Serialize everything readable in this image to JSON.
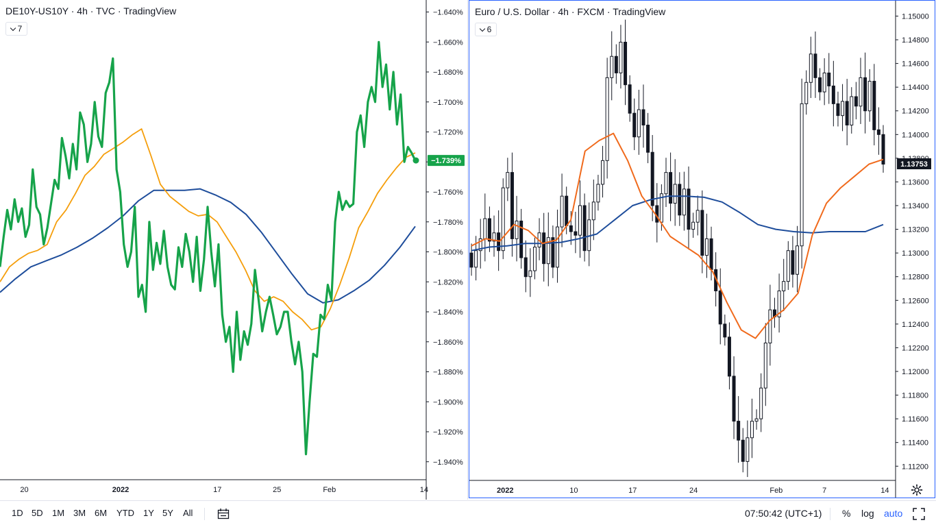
{
  "left_chart": {
    "title": "DE10Y-US10Y · 4h · TVC · TradingView",
    "indicator_count": "7",
    "last_value_label": "−1.739%",
    "colors": {
      "line": "#16a34a",
      "ma_fast": "#f59e0b",
      "ma_slow": "#1e4d9b",
      "price_tag": "#16a34a"
    }
  },
  "right_chart": {
    "title": "Euro / U.S. Dollar · 4h · FXCM · TradingView",
    "indicator_count": "6",
    "last_value_label": "1.13753",
    "colors": {
      "candle": "#131722",
      "ma_fast": "#f06a1c",
      "ma_slow": "#1e4d9b",
      "price_tag": "#131722"
    }
  },
  "chart_data": [
    {
      "type": "line",
      "title": "DE10Y-US10Y · 4h · TVC · TradingView",
      "y_tick_labels": [
        "−1.640%",
        "−1.660%",
        "−1.680%",
        "−1.700%",
        "−1.720%",
        "−1.740%",
        "−1.760%",
        "−1.780%",
        "−1.800%",
        "−1.820%",
        "−1.840%",
        "−1.860%",
        "−1.880%",
        "−1.900%",
        "−1.920%",
        "−1.940%"
      ],
      "y_ticks": [
        -1.64,
        -1.66,
        -1.68,
        -1.7,
        -1.72,
        -1.74,
        -1.76,
        -1.78,
        -1.8,
        -1.82,
        -1.84,
        -1.86,
        -1.88,
        -1.9,
        -1.92,
        -1.94
      ],
      "ylim": [
        -1.952,
        -1.632
      ],
      "x_tick_labels": [
        "20",
        "2022",
        "17",
        "25",
        "Feb",
        "14"
      ],
      "x_tick_pos": [
        0.057,
        0.283,
        0.51,
        0.65,
        0.773,
        0.995
      ],
      "series": [
        {
          "values": [
            -1.81,
            -1.79,
            -1.772,
            -1.785,
            -1.765,
            -1.78,
            -1.771,
            -1.79,
            -1.782,
            -1.745,
            -1.77,
            -1.775,
            -1.795,
            -1.784,
            -1.768,
            -1.752,
            -1.758,
            -1.724,
            -1.736,
            -1.751,
            -1.728,
            -1.745,
            -1.707,
            -1.715,
            -1.74,
            -1.728,
            -1.7,
            -1.723,
            -1.73,
            -1.694,
            -1.687,
            -1.671,
            -1.745,
            -1.76,
            -1.795,
            -1.81,
            -1.8,
            -1.77,
            -1.83,
            -1.822,
            -1.84,
            -1.78,
            -1.812,
            -1.794,
            -1.808,
            -1.786,
            -1.81,
            -1.822,
            -1.825,
            -1.797,
            -1.81,
            -1.788,
            -1.8,
            -1.82,
            -1.79,
            -1.826,
            -1.805,
            -1.77,
            -1.8,
            -1.823,
            -1.795,
            -1.842,
            -1.86,
            -1.85,
            -1.88,
            -1.84,
            -1.872,
            -1.853,
            -1.862,
            -1.848,
            -1.812,
            -1.832,
            -1.853,
            -1.84,
            -1.83,
            -1.842,
            -1.855,
            -1.85,
            -1.84,
            -1.84,
            -1.86,
            -1.875,
            -1.86,
            -1.88,
            -1.935,
            -1.9,
            -1.868,
            -1.87,
            -1.842,
            -1.845,
            -1.822,
            -1.832,
            -1.78,
            -1.76,
            -1.772,
            -1.766,
            -1.77,
            -1.768,
            -1.72,
            -1.709,
            -1.73,
            -1.7,
            -1.69,
            -1.7,
            -1.66,
            -1.69,
            -1.675,
            -1.705,
            -1.68,
            -1.715,
            -1.695,
            -1.74,
            -1.73,
            -1.734,
            -1.739
          ]
        },
        {
          "values": [
            -1.82,
            -1.81,
            -1.805,
            -1.801,
            -1.799,
            -1.795,
            -1.78,
            -1.772,
            -1.761,
            -1.749,
            -1.743,
            -1.735,
            -1.731,
            -1.727,
            -1.722,
            -1.718,
            -1.736,
            -1.755,
            -1.763,
            -1.768,
            -1.773,
            -1.776,
            -1.775,
            -1.78,
            -1.79,
            -1.8,
            -1.812,
            -1.826,
            -1.833,
            -1.83,
            -1.833,
            -1.84,
            -1.845,
            -1.852,
            -1.85,
            -1.838,
            -1.822,
            -1.804,
            -1.784,
            -1.773,
            -1.761,
            -1.752,
            -1.744,
            -1.737,
            -1.734
          ]
        },
        {
          "values": [
            -1.827,
            -1.818,
            -1.81,
            -1.806,
            -1.802,
            -1.797,
            -1.791,
            -1.784,
            -1.776,
            -1.766,
            -1.759,
            -1.759,
            -1.759,
            -1.758,
            -1.762,
            -1.767,
            -1.775,
            -1.787,
            -1.801,
            -1.815,
            -1.828,
            -1.834,
            -1.832,
            -1.826,
            -1.819,
            -1.809,
            -1.797,
            -1.783
          ]
        }
      ]
    },
    {
      "type": "candlestick",
      "title": "Euro / U.S. Dollar · 4h · FXCM · TradingView",
      "y_tick_labels": [
        "1.15000",
        "1.14800",
        "1.14600",
        "1.14400",
        "1.14200",
        "1.14000",
        "1.13800",
        "1.13600",
        "1.13400",
        "1.13200",
        "1.13000",
        "1.12800",
        "1.12600",
        "1.12400",
        "1.12200",
        "1.12000",
        "1.11800",
        "1.11600",
        "1.11400",
        "1.11200"
      ],
      "y_ticks": [
        1.15,
        1.148,
        1.146,
        1.144,
        1.142,
        1.14,
        1.138,
        1.136,
        1.134,
        1.132,
        1.13,
        1.128,
        1.126,
        1.124,
        1.122,
        1.12,
        1.118,
        1.116,
        1.114,
        1.112
      ],
      "ylim": [
        1.1108,
        1.1513
      ],
      "x_tick_labels": [
        "2022",
        "10",
        "17",
        "24",
        "Feb",
        "7",
        "14"
      ],
      "x_tick_pos": [
        0.084,
        0.245,
        0.383,
        0.526,
        0.72,
        0.833,
        0.975
      ],
      "close": [
        1.1288,
        1.1302,
        1.1312,
        1.1329,
        1.131,
        1.1317,
        1.1302,
        1.1355,
        1.1368,
        1.1312,
        1.1327,
        1.1296,
        1.128,
        1.1285,
        1.1305,
        1.1317,
        1.1291,
        1.1313,
        1.1288,
        1.1322,
        1.1348,
        1.1323,
        1.1318,
        1.1315,
        1.134,
        1.1302,
        1.1328,
        1.1343,
        1.1358,
        1.1378,
        1.1448,
        1.1466,
        1.1452,
        1.1478,
        1.1442,
        1.1418,
        1.1398,
        1.1421,
        1.1408,
        1.1385,
        1.134,
        1.1326,
        1.135,
        1.1368,
        1.1342,
        1.1358,
        1.1332,
        1.1354,
        1.132,
        1.1326,
        1.1336,
        1.1298,
        1.1312,
        1.1286,
        1.1268,
        1.124,
        1.1229,
        1.1196,
        1.1158,
        1.1142,
        1.1124,
        1.1144,
        1.1158,
        1.116,
        1.1186,
        1.1224,
        1.1252,
        1.1246,
        1.1268,
        1.1276,
        1.1302,
        1.1282,
        1.1306,
        1.1426,
        1.1444,
        1.1468,
        1.1448,
        1.1436,
        1.1452,
        1.1441,
        1.1426,
        1.1416,
        1.1428,
        1.1408,
        1.1432,
        1.1424,
        1.1448,
        1.142,
        1.1445,
        1.1404,
        1.14,
        1.1375
      ],
      "series": [
        {
          "values": [
            1.1306,
            1.1312,
            1.131,
            1.1324,
            1.1319,
            1.1308,
            1.1311,
            1.1328,
            1.1386,
            1.1395,
            1.1401,
            1.1378,
            1.1348,
            1.1332,
            1.1314,
            1.1306,
            1.1298,
            1.1284,
            1.1258,
            1.1235,
            1.1228,
            1.1243,
            1.1252,
            1.1266,
            1.1315,
            1.1342,
            1.1355,
            1.1365,
            1.1375,
            1.1379
          ]
        },
        {
          "values": [
            1.1302,
            1.1305,
            1.1306,
            1.1308,
            1.1308,
            1.1309,
            1.1312,
            1.1316,
            1.1328,
            1.134,
            1.1345,
            1.1348,
            1.1348,
            1.1347,
            1.1343,
            1.1334,
            1.1324,
            1.132,
            1.1318,
            1.1317,
            1.1318,
            1.1318,
            1.1318,
            1.1324
          ]
        }
      ]
    }
  ],
  "toolbar": {
    "ranges": [
      "1D",
      "5D",
      "1M",
      "3M",
      "6M",
      "YTD",
      "1Y",
      "5Y",
      "All"
    ],
    "clock": "07:50:42 (UTC+1)",
    "percent_label": "%",
    "log_label": "log",
    "auto_label": "auto"
  }
}
